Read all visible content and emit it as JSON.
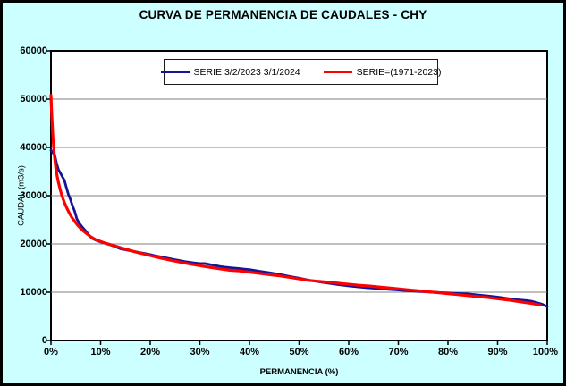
{
  "title": "CURVA DE PERMANENCIA DE CAUDALES - CHY",
  "colors": {
    "background": "#CCFFFF",
    "plot_background": "#FFFFFF",
    "gridline": "#808080",
    "axis": "#000000",
    "series1": "#14149B",
    "series2": "#FF0000"
  },
  "legend": {
    "items": [
      {
        "label": "SERIE 3/2/2023 3/1/2024",
        "color": "#14149B"
      },
      {
        "label": "SERIE=(1971-2023)",
        "color": "#FF0000"
      }
    ]
  },
  "axes": {
    "x_title": "PERMANENCIA (%)",
    "y_title": "CAUDAL (m3/s)",
    "x_tick_labels": [
      "0%",
      "10%",
      "20%",
      "30%",
      "40%",
      "50%",
      "60%",
      "70%",
      "80%",
      "90%",
      "100%"
    ],
    "y_tick_labels": [
      "0",
      "10000",
      "20000",
      "30000",
      "40000",
      "50000",
      "60000"
    ]
  },
  "chart_data": {
    "type": "line",
    "title": "CURVA DE PERMANENCIA DE CAUDALES - CHY",
    "xlabel": "PERMANENCIA (%)",
    "ylabel": "CAUDAL (m3/s)",
    "xlim": [
      0,
      100
    ],
    "ylim": [
      0,
      60000
    ],
    "x_tick_step": 10,
    "y_tick_step": 10000,
    "grid": "horizontal",
    "legend_position": "top-inside",
    "series": [
      {
        "name": "SERIE 3/2/2023 3/1/2024",
        "color": "#14149B",
        "width": 2.8,
        "points": [
          [
            0,
            39400
          ],
          [
            0.4,
            38900
          ],
          [
            0.8,
            38300
          ],
          [
            1.1,
            36800
          ],
          [
            1.5,
            35400
          ],
          [
            1.9,
            34700
          ],
          [
            2.3,
            33900
          ],
          [
            2.7,
            33200
          ],
          [
            3.1,
            31700
          ],
          [
            3.5,
            30300
          ],
          [
            3.9,
            29300
          ],
          [
            4.3,
            28000
          ],
          [
            4.8,
            26700
          ],
          [
            5.2,
            25200
          ],
          [
            5.7,
            24300
          ],
          [
            6.3,
            23500
          ],
          [
            7,
            22700
          ],
          [
            7.6,
            21900
          ],
          [
            8.2,
            21200
          ],
          [
            9,
            20800
          ],
          [
            10,
            20400
          ],
          [
            11,
            20100
          ],
          [
            12,
            19800
          ],
          [
            13,
            19400
          ],
          [
            14,
            19000
          ],
          [
            15,
            18800
          ],
          [
            16,
            18600
          ],
          [
            17,
            18400
          ],
          [
            18,
            18200
          ],
          [
            19,
            18000
          ],
          [
            20,
            17800
          ],
          [
            21,
            17550
          ],
          [
            22,
            17350
          ],
          [
            23,
            17150
          ],
          [
            24,
            16950
          ],
          [
            25,
            16750
          ],
          [
            26,
            16550
          ],
          [
            27,
            16350
          ],
          [
            28,
            16200
          ],
          [
            29,
            16050
          ],
          [
            30,
            15950
          ],
          [
            31,
            15950
          ],
          [
            32,
            15750
          ],
          [
            33,
            15550
          ],
          [
            34,
            15350
          ],
          [
            35,
            15200
          ],
          [
            36,
            15100
          ],
          [
            37,
            15000
          ],
          [
            38,
            14900
          ],
          [
            39,
            14800
          ],
          [
            40,
            14700
          ],
          [
            42,
            14350
          ],
          [
            44,
            14050
          ],
          [
            46,
            13700
          ],
          [
            48,
            13300
          ],
          [
            50,
            12900
          ],
          [
            52,
            12500
          ],
          [
            54,
            12150
          ],
          [
            56,
            11850
          ],
          [
            58,
            11550
          ],
          [
            60,
            11300
          ],
          [
            62,
            11100
          ],
          [
            64,
            10900
          ],
          [
            66,
            10750
          ],
          [
            68,
            10600
          ],
          [
            70,
            10450
          ],
          [
            72,
            10300
          ],
          [
            74,
            10150
          ],
          [
            76,
            10050
          ],
          [
            78,
            9950
          ],
          [
            80,
            9850
          ],
          [
            82,
            9750
          ],
          [
            84,
            9650
          ],
          [
            86,
            9450
          ],
          [
            88,
            9250
          ],
          [
            90,
            9000
          ],
          [
            92,
            8700
          ],
          [
            94,
            8450
          ],
          [
            95,
            8350
          ],
          [
            96,
            8250
          ],
          [
            97,
            8100
          ],
          [
            98,
            7800
          ],
          [
            99,
            7500
          ],
          [
            99.5,
            7250
          ],
          [
            100,
            7000
          ]
        ]
      },
      {
        "name": "SERIE=(1971-2023)",
        "color": "#FF0000",
        "width": 3.2,
        "points": [
          [
            0,
            50800
          ],
          [
            0.15,
            47000
          ],
          [
            0.4,
            42000
          ],
          [
            0.7,
            38200
          ],
          [
            1,
            35500
          ],
          [
            1.4,
            33200
          ],
          [
            1.8,
            31500
          ],
          [
            2.2,
            30000
          ],
          [
            2.7,
            28600
          ],
          [
            3.2,
            27400
          ],
          [
            3.7,
            26400
          ],
          [
            4.2,
            25500
          ],
          [
            4.7,
            24800
          ],
          [
            5.2,
            24100
          ],
          [
            5.8,
            23400
          ],
          [
            6.4,
            22800
          ],
          [
            7,
            22300
          ],
          [
            8,
            21500
          ],
          [
            9,
            20900
          ],
          [
            10,
            20500
          ],
          [
            11,
            20150
          ],
          [
            12,
            19850
          ],
          [
            13,
            19550
          ],
          [
            14,
            19250
          ],
          [
            15,
            18950
          ],
          [
            16,
            18650
          ],
          [
            17,
            18350
          ],
          [
            18,
            18100
          ],
          [
            19,
            17850
          ],
          [
            20,
            17600
          ],
          [
            22,
            17100
          ],
          [
            24,
            16650
          ],
          [
            26,
            16250
          ],
          [
            28,
            15850
          ],
          [
            30,
            15500
          ],
          [
            32,
            15150
          ],
          [
            34,
            14850
          ],
          [
            36,
            14550
          ],
          [
            38,
            14400
          ],
          [
            40,
            14150
          ],
          [
            42,
            13900
          ],
          [
            44,
            13650
          ],
          [
            46,
            13400
          ],
          [
            48,
            13100
          ],
          [
            50,
            12750
          ],
          [
            52,
            12450
          ],
          [
            54,
            12250
          ],
          [
            56,
            12050
          ],
          [
            58,
            11850
          ],
          [
            60,
            11650
          ],
          [
            62,
            11450
          ],
          [
            64,
            11300
          ],
          [
            66,
            11100
          ],
          [
            68,
            10900
          ],
          [
            70,
            10700
          ],
          [
            72,
            10500
          ],
          [
            74,
            10300
          ],
          [
            76,
            10100
          ],
          [
            78,
            9900
          ],
          [
            80,
            9700
          ],
          [
            82,
            9500
          ],
          [
            84,
            9300
          ],
          [
            86,
            9100
          ],
          [
            88,
            8900
          ],
          [
            90,
            8650
          ],
          [
            92,
            8400
          ],
          [
            94,
            8100
          ],
          [
            96,
            7800
          ],
          [
            97,
            7650
          ],
          [
            98,
            7450
          ],
          [
            98.5,
            7350
          ]
        ]
      }
    ]
  }
}
